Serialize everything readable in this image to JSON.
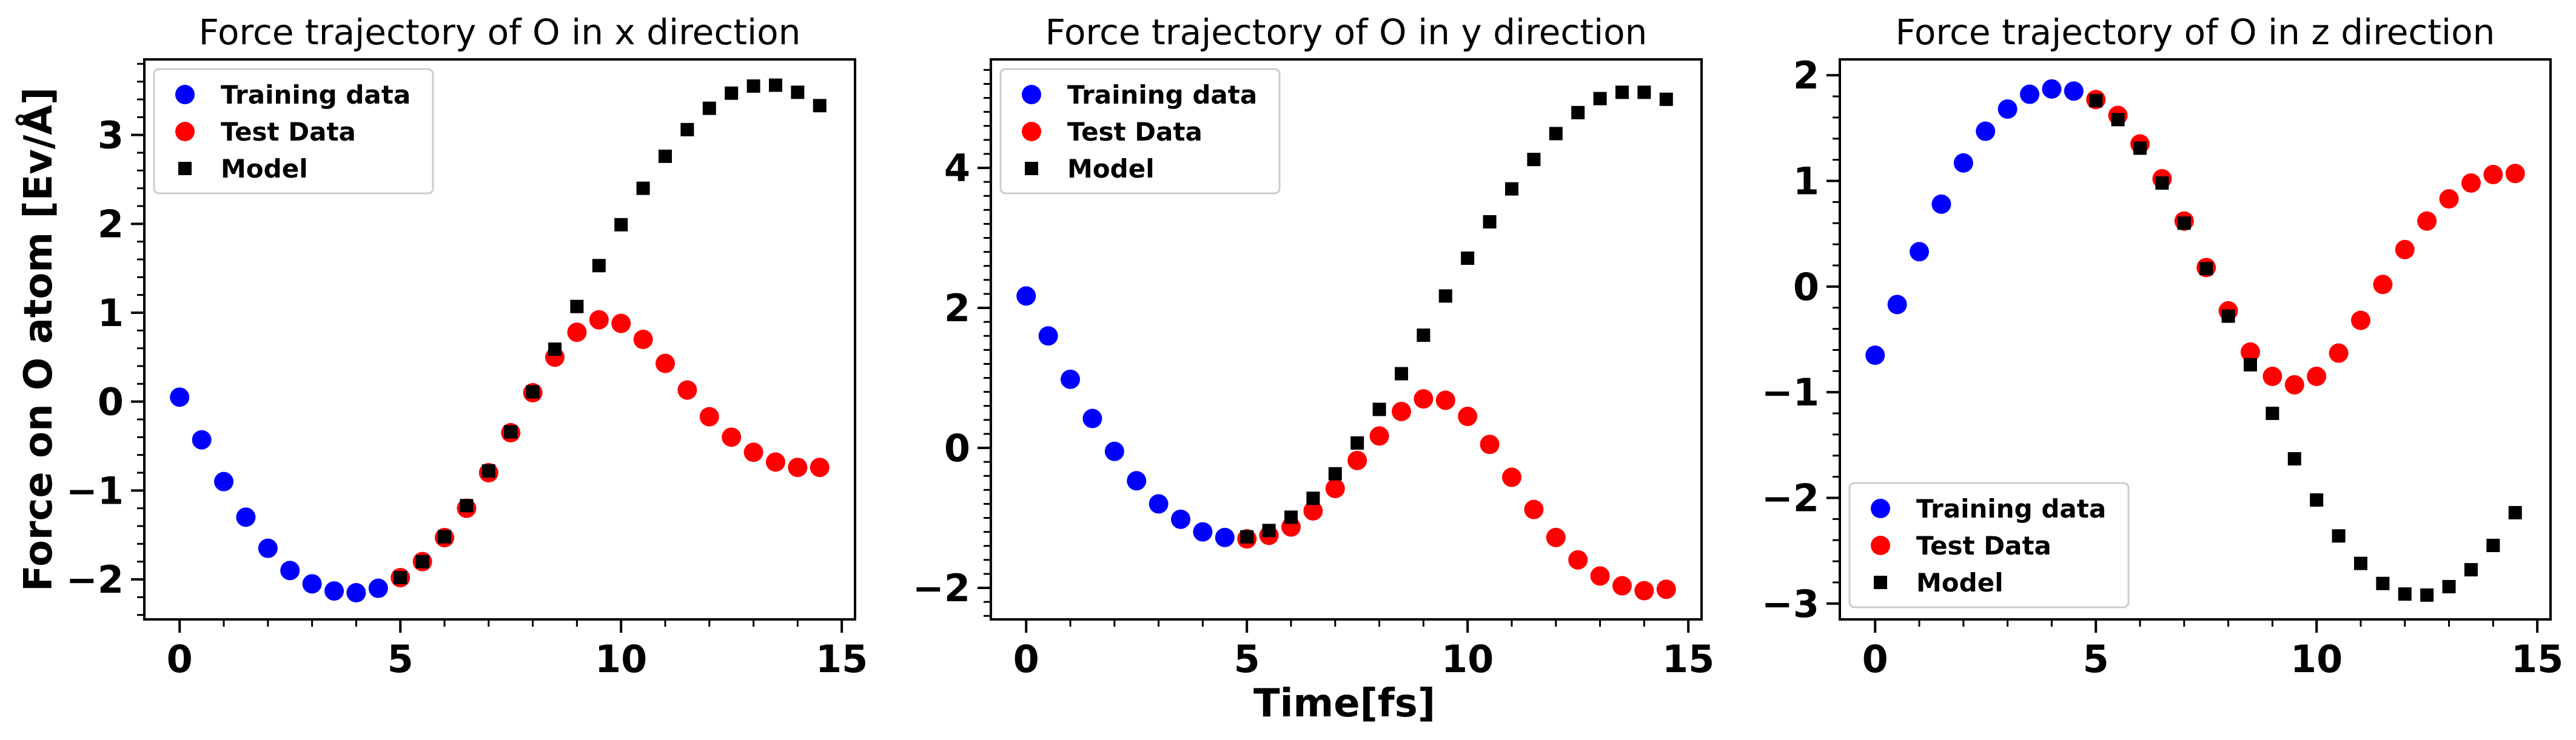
{
  "colors": {
    "training": "#0000ff",
    "test": "#ff0000",
    "model": "#000000"
  },
  "figure": {
    "xlabel": "Time[fs]",
    "ylabel": "Force on O atom [Ev/Å]"
  },
  "chart_data": [
    {
      "type": "scatter",
      "title": "Force trajectory of O in x direction",
      "xlabel": "",
      "ylabel": "Force on O atom [Ev/Å]",
      "xlim": [
        -0.8,
        15.3
      ],
      "ylim": [
        -2.45,
        3.85
      ],
      "xticks": [
        0,
        5,
        10,
        15
      ],
      "yticks": [
        -2,
        -1,
        0,
        1,
        2,
        3
      ],
      "ytick_labels": [
        "−2",
        "−1",
        "0",
        "1",
        "2",
        "3"
      ],
      "legend_position": "top-left",
      "legend": [
        "Training data",
        "Test Data",
        "Model"
      ],
      "series": [
        {
          "name": "Training data",
          "marker": "circle",
          "x": [
            0,
            0.5,
            1,
            1.5,
            2,
            2.5,
            3,
            3.5,
            4,
            4.5
          ],
          "y": [
            0.05,
            -0.43,
            -0.9,
            -1.3,
            -1.65,
            -1.9,
            -2.05,
            -2.13,
            -2.15,
            -2.1
          ]
        },
        {
          "name": "Test Data",
          "marker": "circle",
          "x": [
            5,
            5.5,
            6,
            6.5,
            7,
            7.5,
            8,
            8.5,
            9,
            9.5,
            10,
            10.5,
            11,
            11.5,
            12,
            12.5,
            13,
            13.5,
            14,
            14.5
          ],
          "y": [
            -1.98,
            -1.8,
            -1.53,
            -1.2,
            -0.8,
            -0.35,
            0.1,
            0.5,
            0.78,
            0.92,
            0.88,
            0.7,
            0.43,
            0.13,
            -0.17,
            -0.4,
            -0.57,
            -0.68,
            -0.74,
            -0.74
          ]
        },
        {
          "name": "Model",
          "marker": "square",
          "x": [
            5,
            5.5,
            6,
            6.5,
            7,
            7.5,
            8,
            8.5,
            9,
            9.5,
            10,
            10.5,
            11,
            11.5,
            12,
            12.5,
            13,
            13.5,
            14,
            14.5
          ],
          "y": [
            -1.98,
            -1.8,
            -1.52,
            -1.17,
            -0.78,
            -0.34,
            0.11,
            0.59,
            1.07,
            1.53,
            1.99,
            2.4,
            2.76,
            3.06,
            3.3,
            3.47,
            3.55,
            3.56,
            3.48,
            3.33
          ]
        }
      ]
    },
    {
      "type": "scatter",
      "title": "Force trajectory of O in y direction",
      "xlabel": "Time[fs]",
      "ylabel": "",
      "xlim": [
        -0.8,
        15.3
      ],
      "ylim": [
        -2.45,
        5.55
      ],
      "xticks": [
        0,
        5,
        10,
        15
      ],
      "yticks": [
        -2,
        0,
        2,
        4
      ],
      "ytick_labels": [
        "−2",
        "0",
        "2",
        "4"
      ],
      "legend_position": "top-left",
      "legend": [
        "Training data",
        "Test Data",
        "Model"
      ],
      "series": [
        {
          "name": "Training data",
          "marker": "circle",
          "x": [
            0,
            0.5,
            1,
            1.5,
            2,
            2.5,
            3,
            3.5,
            4,
            4.5
          ],
          "y": [
            2.17,
            1.6,
            0.98,
            0.42,
            -0.05,
            -0.47,
            -0.8,
            -1.02,
            -1.2,
            -1.28
          ]
        },
        {
          "name": "Test Data",
          "marker": "circle",
          "x": [
            5,
            5.5,
            6,
            6.5,
            7,
            7.5,
            8,
            8.5,
            9,
            9.5,
            10,
            10.5,
            11,
            11.5,
            12,
            12.5,
            13,
            13.5,
            14,
            14.5
          ],
          "y": [
            -1.3,
            -1.25,
            -1.13,
            -0.9,
            -0.58,
            -0.18,
            0.17,
            0.52,
            0.7,
            0.68,
            0.45,
            0.05,
            -0.42,
            -0.88,
            -1.28,
            -1.6,
            -1.83,
            -1.97,
            -2.04,
            -2.02
          ]
        },
        {
          "name": "Model",
          "marker": "square",
          "x": [
            5,
            5.5,
            6,
            6.5,
            7,
            7.5,
            8,
            8.5,
            9,
            9.5,
            10,
            10.5,
            11,
            11.5,
            12,
            12.5,
            13,
            13.5,
            14,
            14.5
          ],
          "y": [
            -1.27,
            -1.18,
            -0.99,
            -0.72,
            -0.37,
            0.07,
            0.55,
            1.06,
            1.61,
            2.17,
            2.71,
            3.23,
            3.7,
            4.12,
            4.49,
            4.79,
            4.99,
            5.08,
            5.08,
            4.98
          ]
        }
      ]
    },
    {
      "type": "scatter",
      "title": "Force trajectory of O in z direction",
      "xlabel": "",
      "ylabel": "",
      "xlim": [
        -0.8,
        15.3
      ],
      "ylim": [
        -3.15,
        2.15
      ],
      "xticks": [
        0,
        5,
        10,
        15
      ],
      "yticks": [
        -3,
        -2,
        -1,
        0,
        1,
        2
      ],
      "ytick_labels": [
        "−3",
        "−2",
        "−1",
        "0",
        "1",
        "2"
      ],
      "legend_position": "bottom-left",
      "legend": [
        "Training data",
        "Test Data",
        "Model"
      ],
      "series": [
        {
          "name": "Training data",
          "marker": "circle",
          "x": [
            0,
            0.5,
            1,
            1.5,
            2,
            2.5,
            3,
            3.5,
            4,
            4.5
          ],
          "y": [
            -0.65,
            -0.17,
            0.33,
            0.78,
            1.17,
            1.47,
            1.68,
            1.82,
            1.87,
            1.85
          ]
        },
        {
          "name": "Test Data",
          "marker": "circle",
          "x": [
            5,
            5.5,
            6,
            6.5,
            7,
            7.5,
            8,
            8.5,
            9,
            9.5,
            10,
            10.5,
            11,
            11.5,
            12,
            12.5,
            13,
            13.5,
            14,
            14.5
          ],
          "y": [
            1.77,
            1.62,
            1.35,
            1.02,
            0.62,
            0.18,
            -0.23,
            -0.62,
            -0.85,
            -0.93,
            -0.85,
            -0.63,
            -0.32,
            0.02,
            0.35,
            0.62,
            0.83,
            0.98,
            1.06,
            1.07
          ]
        },
        {
          "name": "Model",
          "marker": "square",
          "x": [
            5,
            5.5,
            6,
            6.5,
            7,
            7.5,
            8,
            8.5,
            9,
            9.5,
            10,
            10.5,
            11,
            11.5,
            12,
            12.5,
            13,
            13.5,
            14,
            14.5
          ],
          "y": [
            1.76,
            1.58,
            1.31,
            0.98,
            0.6,
            0.17,
            -0.28,
            -0.74,
            -1.2,
            -1.63,
            -2.02,
            -2.36,
            -2.62,
            -2.81,
            -2.91,
            -2.92,
            -2.84,
            -2.68,
            -2.45,
            -2.14
          ]
        }
      ]
    }
  ]
}
